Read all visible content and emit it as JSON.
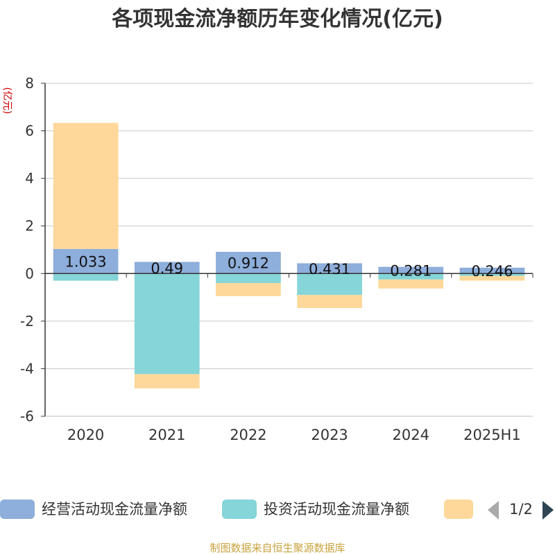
{
  "chart_data": {
    "type": "bar",
    "stacked": true,
    "title": "各项现金流净额历年变化情况(亿元)",
    "unit_label": "(亿元)",
    "categories": [
      "2020",
      "2021",
      "2022",
      "2023",
      "2024",
      "2025H1"
    ],
    "ylim": [
      -6,
      8
    ],
    "yticks": [
      8,
      6,
      4,
      2,
      0,
      -2,
      -4,
      -6
    ],
    "grid": true,
    "legend_position": "bottom",
    "series": [
      {
        "name": "经营活动现金流量净额",
        "color": "#8eaedb",
        "values": [
          1.033,
          0.49,
          0.912,
          0.431,
          0.281,
          0.246
        ],
        "show_labels": true
      },
      {
        "name": "投资活动现金流量净额",
        "color": "#86d5d8",
        "values": [
          -0.3,
          -4.23,
          -0.4,
          -0.9,
          -0.25,
          -0.1
        ],
        "show_labels": false
      },
      {
        "name": "",
        "color": "#fdd89a",
        "values": [
          5.3,
          -0.6,
          -0.55,
          -0.55,
          -0.38,
          -0.2
        ],
        "show_labels": false
      }
    ]
  },
  "legend": {
    "pager": "1/2",
    "prev_icon": "triangle-left-icon",
    "next_icon": "triangle-right-icon",
    "prev_color": "#aaaaaa",
    "next_color": "#2f4554"
  },
  "source": "制图数据来自恒生聚源数据库"
}
